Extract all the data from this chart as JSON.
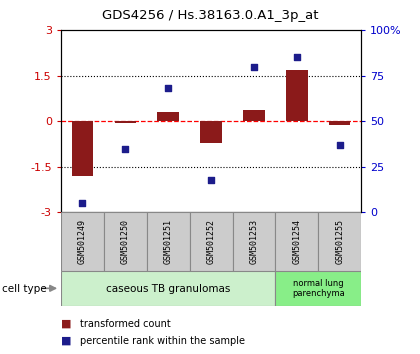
{
  "title": "GDS4256 / Hs.38163.0.A1_3p_at",
  "samples": [
    "GSM501249",
    "GSM501250",
    "GSM501251",
    "GSM501252",
    "GSM501253",
    "GSM501254",
    "GSM501255"
  ],
  "transformed_counts": [
    -1.8,
    -0.05,
    0.3,
    -0.72,
    0.38,
    1.68,
    -0.13
  ],
  "percentile_ranks": [
    5,
    35,
    68,
    18,
    80,
    85,
    37
  ],
  "ylim_left": [
    -3,
    3
  ],
  "ylim_right": [
    0,
    100
  ],
  "yticks_left": [
    -3,
    -1.5,
    0,
    1.5,
    3
  ],
  "yticks_right": [
    0,
    25,
    50,
    75,
    100
  ],
  "ytick_labels_right": [
    "0",
    "25",
    "50",
    "75",
    "100%"
  ],
  "bar_color": "#8B1A1A",
  "dot_color": "#1C1C8B",
  "bar_width": 0.5,
  "cell_type_label": "cell type",
  "group1_label": "caseous TB granulomas",
  "group1_color": "#ccf0cc",
  "group1_count": 5,
  "group2_label": "normal lung\nparenchyma",
  "group2_color": "#88ee88",
  "group2_count": 2,
  "legend_items": [
    {
      "color": "#8B1A1A",
      "label": "transformed count"
    },
    {
      "color": "#1C1C8B",
      "label": "percentile rank within the sample"
    }
  ],
  "background_color": "#ffffff",
  "tick_label_color_left": "#CC0000",
  "tick_label_color_right": "#0000CC",
  "sample_box_color": "#cccccc",
  "sample_box_edge": "#888888"
}
